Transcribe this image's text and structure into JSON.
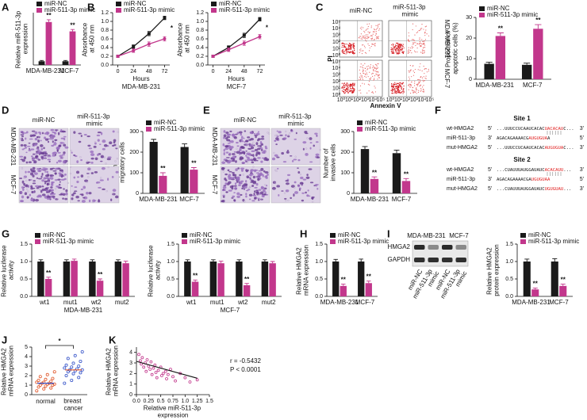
{
  "chart_data": [
    {
      "type": "bar",
      "panel": "A",
      "ylabel": "Relative miR-511-3p expression",
      "categories": [
        "MDA-MB-231",
        "MCF-7"
      ],
      "ylim": [
        0,
        14
      ],
      "series": [
        {
          "name": "miR-NC",
          "color": "#1a1a1a",
          "values": [
            1,
            1
          ],
          "errors": [
            0.2,
            0.2
          ]
        },
        {
          "name": "miR-511-3p mimic",
          "color": "#c2378c",
          "values": [
            11.5,
            9
          ],
          "errors": [
            0.6,
            0.5
          ],
          "significance": [
            "**",
            "**"
          ]
        }
      ]
    },
    {
      "type": "line",
      "panel": "B",
      "ylabel": "Absorbance at 450 nm",
      "xlabel": "Hours",
      "subtitle": "MDA-MB-231",
      "x": [
        0,
        24,
        48,
        72
      ],
      "xlim": [
        -8,
        80
      ],
      "ylim": [
        0,
        1.2
      ],
      "yticks": [
        {
          "value": 0,
          "label": "0.0"
        },
        0.2,
        0.4,
        0.6,
        0.8,
        {
          "value": 1,
          "label": "1.0"
        },
        1.2
      ],
      "series": [
        {
          "name": "miR-NC",
          "color": "#1a1a1a",
          "values": [
            0.2,
            0.42,
            0.72,
            1.08
          ],
          "errors": [
            0.03,
            0.04,
            0.05,
            0.04
          ]
        },
        {
          "name": "miR-511-3p mimic",
          "color": "#c2378c",
          "values": [
            0.2,
            0.33,
            0.48,
            0.6
          ],
          "errors": [
            0.03,
            0.04,
            0.05,
            0.05
          ],
          "significance": [
            null,
            null,
            null,
            "*"
          ]
        }
      ]
    },
    {
      "type": "line",
      "ylabel": "Absorbance at 450 nm",
      "xlabel": "Hours",
      "subtitle": "MCF-7",
      "x": [
        0,
        24,
        48,
        72
      ],
      "xlim": [
        -8,
        80
      ],
      "ylim": [
        0,
        1.2
      ],
      "yticks": [
        {
          "value": 0,
          "label": "0.0"
        },
        0.2,
        0.4,
        0.6,
        0.8,
        {
          "value": 1,
          "label": "1.0"
        },
        1.2
      ],
      "series": [
        {
          "name": "miR-NC",
          "color": "#1a1a1a",
          "values": [
            0.2,
            0.4,
            0.68,
            1.05
          ],
          "errors": [
            0.03,
            0.04,
            0.05,
            0.04
          ]
        },
        {
          "name": "miR-511-3p mimic",
          "color": "#c2378c",
          "values": [
            0.2,
            0.35,
            0.5,
            0.65
          ],
          "errors": [
            0.03,
            0.04,
            0.05,
            0.05
          ],
          "significance": [
            null,
            null,
            null,
            "*"
          ]
        }
      ]
    },
    {
      "type": "bar",
      "ylabel": "Proportion of apoptotic cells (%)",
      "categories": [
        "MDA-MB-231",
        "MCF-7"
      ],
      "ylim": [
        0,
        30
      ],
      "yticks": [
        0,
        10,
        20,
        30
      ],
      "series": [
        {
          "name": "miR-NC",
          "color": "#1a1a1a",
          "values": [
            7.5,
            7
          ],
          "errors": [
            0.8,
            0.8
          ]
        },
        {
          "name": "miR-511-3p mimic",
          "color": "#c2378c",
          "values": [
            21,
            24.5
          ],
          "errors": [
            1.5,
            2
          ],
          "significance": [
            "**",
            "**"
          ]
        }
      ]
    },
    {
      "type": "bar",
      "ylabel": "Number of migratory cells",
      "categories": [
        "MDA-MB-231",
        "MCF-7"
      ],
      "ylim": [
        0,
        300
      ],
      "yticks": [
        0,
        100,
        200,
        300
      ],
      "series": [
        {
          "name": "miR-NC",
          "color": "#1a1a1a",
          "values": [
            250,
            225
          ],
          "errors": [
            12,
            15
          ]
        },
        {
          "name": "miR-511-3p mimic",
          "color": "#c2378c",
          "values": [
            85,
            115
          ],
          "errors": [
            15,
            10
          ],
          "significance": [
            "**",
            "**"
          ]
        }
      ]
    },
    {
      "type": "bar",
      "ylabel": "Number of invasive cells",
      "categories": [
        "MDA-MB-231",
        "MCF-7"
      ],
      "ylim": [
        0,
        300
      ],
      "yticks": [
        0,
        100,
        200,
        300
      ],
      "series": [
        {
          "name": "miR-NC",
          "color": "#1a1a1a",
          "values": [
            215,
            195
          ],
          "errors": [
            12,
            15
          ]
        },
        {
          "name": "miR-511-3p mimic",
          "color": "#c2378c",
          "values": [
            70,
            60
          ],
          "errors": [
            10,
            12
          ],
          "significance": [
            "**",
            "**"
          ]
        }
      ]
    },
    {
      "type": "bar",
      "panel": "G",
      "ylabel": "Relative luciferase activity",
      "xlabel": "MDA-MB-231",
      "categories": [
        "wt1",
        "mut1",
        "wt2",
        "mut2"
      ],
      "ylim": [
        0,
        1.5
      ],
      "yticks": [
        {
          "value": 0,
          "label": "0.0"
        },
        0.5,
        {
          "value": 1,
          "label": "1.0"
        },
        1.5
      ],
      "series": [
        {
          "name": "miR-NC",
          "color": "#1a1a1a",
          "values": [
            1,
            1,
            1,
            1
          ],
          "errors": [
            0.05,
            0.05,
            0.05,
            0.05
          ]
        },
        {
          "name": "miR-511-3p mimic",
          "color": "#c2378c",
          "values": [
            0.5,
            1.02,
            0.45,
            0.95
          ],
          "errors": [
            0.05,
            0.05,
            0.05,
            0.06
          ],
          "significance": [
            "**",
            null,
            "**",
            null
          ]
        }
      ]
    },
    {
      "type": "bar",
      "ylabel": "Relative luciferase activity",
      "xlabel": "MCF-7",
      "categories": [
        "wt1",
        "mut1",
        "wt2",
        "mut2"
      ],
      "ylim": [
        0,
        1.5
      ],
      "yticks": [
        {
          "value": 0,
          "label": "0.0"
        },
        0.5,
        {
          "value": 1,
          "label": "1.0"
        },
        1.5
      ],
      "series": [
        {
          "name": "miR-NC",
          "color": "#1a1a1a",
          "values": [
            1,
            1,
            1,
            1
          ],
          "errors": [
            0.05,
            0.05,
            0.05,
            0.05
          ]
        },
        {
          "name": "miR-511-3p mimic",
          "color": "#c2378c",
          "values": [
            0.42,
            0.95,
            0.32,
            0.95
          ],
          "errors": [
            0.05,
            0.06,
            0.05,
            0.05
          ],
          "significance": [
            "**",
            null,
            "**",
            null
          ]
        }
      ]
    },
    {
      "type": "bar",
      "panel": "H",
      "ylabel": "Relative HMGA2 mRNA expression",
      "categories": [
        "MDA-MB-231",
        "MCF-7"
      ],
      "ylim": [
        0,
        1.5
      ],
      "yticks": [
        {
          "value": 0,
          "label": "0.0"
        },
        0.5,
        {
          "value": 1,
          "label": "1.0"
        },
        1.5
      ],
      "series": [
        {
          "name": "miR-NC",
          "color": "#1a1a1a",
          "values": [
            1,
            1
          ],
          "errors": [
            0.06,
            0.07
          ]
        },
        {
          "name": "miR-511-3p mimic",
          "color": "#c2378c",
          "values": [
            0.3,
            0.38
          ],
          "errors": [
            0.05,
            0.06
          ],
          "significance": [
            "**",
            "**"
          ]
        }
      ]
    },
    {
      "type": "bar",
      "ylabel": "Relative HMGA2 protein expression",
      "categories": [
        "MDA-MB-231",
        "MCF-7"
      ],
      "ylim": [
        0,
        1.5
      ],
      "yticks": [
        {
          "value": 0,
          "label": "0.0"
        },
        0.5,
        {
          "value": 1,
          "label": "1.0"
        },
        1.5
      ],
      "series": [
        {
          "name": "miR-NC",
          "color": "#1a1a1a",
          "values": [
            1,
            1
          ],
          "errors": [
            0.07,
            0.08
          ]
        },
        {
          "name": "miR-511-3p mimic",
          "color": "#c2378c",
          "values": [
            0.2,
            0.3
          ],
          "errors": [
            0.04,
            0.05
          ],
          "significance": [
            "**",
            "**"
          ]
        }
      ]
    },
    {
      "type": "strip",
      "panel": "J",
      "ylabel": "Relative HMGA2 mRNA expression",
      "categories": [
        "normal",
        "breast cancer"
      ],
      "ylim": [
        0,
        5
      ],
      "yticks": [
        0,
        1,
        2,
        3,
        4,
        5
      ],
      "colors": [
        "#e0572a",
        "#3553c9"
      ],
      "means": [
        1.2,
        2.6
      ],
      "significance": "*",
      "values": [
        [
          0.4,
          0.6,
          0.7,
          0.8,
          0.9,
          1.0,
          1.0,
          1.1,
          1.1,
          1.2,
          1.2,
          1.3,
          1.3,
          1.4,
          1.5,
          1.6,
          1.7,
          1.9,
          2.1,
          2.4
        ],
        [
          1.2,
          1.5,
          1.8,
          2.0,
          2.2,
          2.3,
          2.4,
          2.5,
          2.6,
          2.6,
          2.7,
          2.8,
          2.9,
          3.0,
          3.1,
          3.3,
          3.5,
          3.8,
          4.1,
          4.5
        ]
      ]
    },
    {
      "type": "scatter",
      "panel": "K",
      "ylabel": "Relative HMGA2 mRNA expression",
      "xlabel": "Relative miR-511-3p expression",
      "color": "#c2378c",
      "xlim": [
        0,
        1.5
      ],
      "xticks": [
        {
          "value": 0,
          "label": "0.0"
        },
        0.25,
        0.5,
        0.75,
        {
          "value": 1,
          "label": "1.0"
        },
        1.25,
        1.5
      ],
      "ylim": [
        0,
        4.5
      ],
      "yticks": [
        0,
        1,
        2,
        3,
        4
      ],
      "annotations": [
        "r = -0.5432",
        "P < 0.0001"
      ],
      "trend": {
        "x": [
          0,
          1.25
        ],
        "y": [
          3.15,
          1.55
        ]
      },
      "x": [
        0.05,
        0.08,
        0.1,
        0.12,
        0.15,
        0.18,
        0.2,
        0.22,
        0.25,
        0.28,
        0.3,
        0.32,
        0.35,
        0.38,
        0.4,
        0.42,
        0.45,
        0.5,
        0.52,
        0.55,
        0.6,
        0.62,
        0.65,
        0.7,
        0.75,
        0.8,
        0.9,
        1.0,
        1.1,
        1.25
      ],
      "y": [
        3.8,
        3.2,
        2.9,
        3.5,
        2.6,
        3.0,
        2.2,
        3.3,
        2.7,
        2.4,
        3.1,
        1.9,
        2.5,
        2.8,
        2.1,
        1.6,
        2.3,
        2.6,
        1.8,
        2.0,
        2.2,
        1.5,
        1.9,
        2.4,
        1.7,
        1.3,
        2.0,
        1.6,
        1.2,
        1.4
      ]
    }
  ],
  "flow": {
    "panel": "C",
    "columns": [
      "miR-NC",
      "miR-511-3p mimic"
    ],
    "rows": [
      "MDA-MB-231",
      "MCF-7"
    ],
    "xlabel": "Annexin V",
    "ylabel": "PI",
    "ticks": [
      "10⁰",
      "10¹",
      "10²",
      "10³",
      "10⁴",
      "10⁵"
    ]
  },
  "micrographs": [
    {
      "panel": "D",
      "columns": [
        "miR-NC",
        "miR-511-3p mimic"
      ],
      "rows": [
        "MDA-MB-231",
        "MCF-7"
      ]
    },
    {
      "panel": "E",
      "columns": [
        "miR-NC",
        "miR-511-3p mimic"
      ],
      "rows": [
        "MDA-MB-231",
        "MCF-7"
      ]
    }
  ],
  "sequences": {
    "panel": "F",
    "sites": [
      {
        "title": "Site 1",
        "rows": [
          {
            "name": "wt-HMGA2",
            "start": "5'",
            "seq": "...UUUCCUCAAUCACAC",
            "highlight": "UACACAU",
            "tail": "C...",
            "end": "3'"
          },
          {
            "name": "miR-511-3p",
            "start": "3'",
            "seq": "AGACAGAAAACG",
            "highlight": "AUGUGUA",
            "tail": "A",
            "end": "5'"
          },
          {
            "name": "mut-HMGA2",
            "start": "5'",
            "seq": "...UUUCCUCAAUCACAC",
            "highlight": "AUGUGUA",
            "tail": "C...",
            "end": "3'"
          }
        ]
      },
      {
        "title": "Site 2",
        "rows": [
          {
            "name": "wt-HMGA2",
            "start": "5'",
            "seq": "...CUAUUUAUGGAUAUC",
            "highlight": "ACACAUU",
            "tail": "...",
            "end": "3'"
          },
          {
            "name": "miR-511-3p",
            "start": "3'",
            "seq": "AGACAGAAAACGA",
            "highlight": "UGUGUAA",
            "tail": "",
            "end": "5'"
          },
          {
            "name": "mut-HMGA2",
            "start": "5'",
            "seq": "...CUAUUUAUGGAUAUC",
            "highlight": "UGUGUAU",
            "tail": "...",
            "end": "3'"
          }
        ]
      }
    ]
  },
  "blot": {
    "panel": "I",
    "groups": [
      "MDA-MB-231",
      "MCF-7"
    ],
    "proteins": [
      "HMGA2",
      "GAPDH"
    ],
    "lanes": [
      "miR-NC",
      "miR-511-3p mimic",
      "miR-NC",
      "miR-511-3p mimic"
    ]
  }
}
